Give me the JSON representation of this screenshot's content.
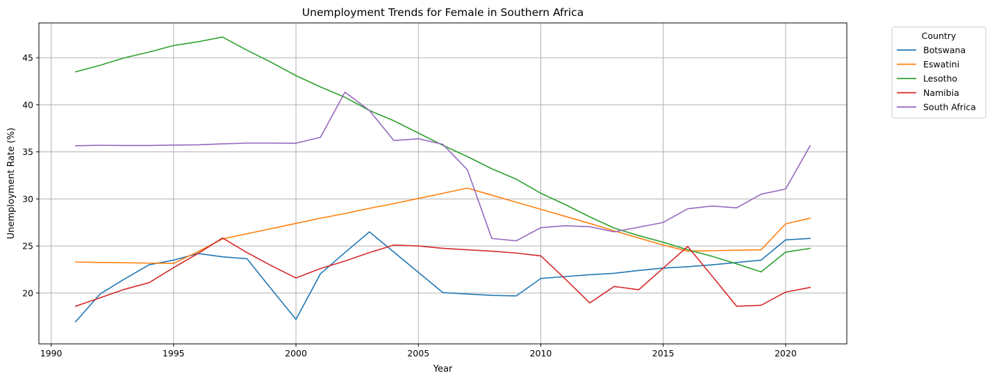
{
  "chart_data": {
    "type": "line",
    "title": "Unemployment Trends for Female in Southern Africa",
    "xlabel": "Year",
    "ylabel": "Unemployment Rate (%)",
    "xlim": [
      1989.5,
      2022.5
    ],
    "ylim": [
      14.6,
      48.7
    ],
    "xticks": [
      1990,
      1995,
      2000,
      2005,
      2010,
      2015,
      2020
    ],
    "yticks": [
      20,
      25,
      30,
      35,
      40,
      45
    ],
    "grid": true,
    "legend": {
      "title": "Country",
      "placement": "outside-top-right"
    },
    "x": [
      1991,
      1992,
      1993,
      1994,
      1995,
      1996,
      1997,
      1998,
      1999,
      2000,
      2001,
      2002,
      2003,
      2004,
      2005,
      2006,
      2007,
      2008,
      2009,
      2010,
      2011,
      2012,
      2013,
      2014,
      2015,
      2016,
      2017,
      2018,
      2019,
      2020,
      2021
    ],
    "series": [
      {
        "name": "Botswana",
        "color": "#1f77b4",
        "values": [
          16.95,
          19.9,
          21.5,
          23.0,
          23.5,
          24.2,
          23.85,
          23.65,
          20.4,
          17.2,
          22.05,
          24.3,
          26.5,
          24.35,
          22.2,
          20.05,
          19.9,
          19.75,
          19.7,
          21.55,
          21.75,
          21.95,
          22.1,
          22.4,
          22.65,
          22.8,
          23.0,
          23.25,
          23.5,
          25.65,
          25.8
        ]
      },
      {
        "name": "Eswatini",
        "color": "#ff7f0e",
        "values": [
          23.3,
          23.25,
          23.22,
          23.18,
          23.15,
          24.4,
          25.75,
          26.3,
          26.85,
          27.4,
          27.95,
          28.45,
          29.0,
          29.5,
          30.05,
          30.6,
          31.15,
          30.4,
          29.65,
          28.9,
          28.15,
          27.4,
          26.6,
          25.85,
          25.1,
          24.45,
          24.5,
          24.55,
          24.6,
          27.35,
          27.95
        ]
      },
      {
        "name": "Lesotho",
        "color": "#2ca02c",
        "values": [
          43.5,
          44.2,
          45.0,
          45.6,
          46.3,
          46.7,
          47.2,
          45.8,
          44.5,
          43.1,
          41.9,
          40.8,
          39.4,
          38.3,
          37.0,
          35.7,
          34.5,
          33.2,
          32.1,
          30.6,
          29.4,
          28.1,
          26.9,
          26.1,
          25.4,
          24.6,
          23.9,
          23.1,
          22.25,
          24.35,
          24.75
        ]
      },
      {
        "name": "Namibia",
        "color": "#d62728",
        "values": [
          18.6,
          19.5,
          20.4,
          21.1,
          22.7,
          24.2,
          25.85,
          24.3,
          22.9,
          21.6,
          22.6,
          23.4,
          24.3,
          25.1,
          25.0,
          24.75,
          24.6,
          24.45,
          24.25,
          23.95,
          21.5,
          18.95,
          20.7,
          20.35,
          22.65,
          24.95,
          21.8,
          18.6,
          18.7,
          20.1,
          20.6
        ]
      },
      {
        "name": "South Africa",
        "color": "#9467bd",
        "values": [
          35.65,
          35.7,
          35.68,
          35.68,
          35.72,
          35.75,
          35.85,
          35.93,
          35.93,
          35.92,
          36.55,
          41.35,
          39.4,
          36.2,
          36.4,
          35.8,
          33.1,
          25.8,
          25.55,
          26.95,
          27.15,
          27.05,
          26.5,
          27.0,
          27.5,
          28.95,
          29.25,
          29.05,
          30.5,
          31.05,
          35.65
        ]
      }
    ]
  }
}
